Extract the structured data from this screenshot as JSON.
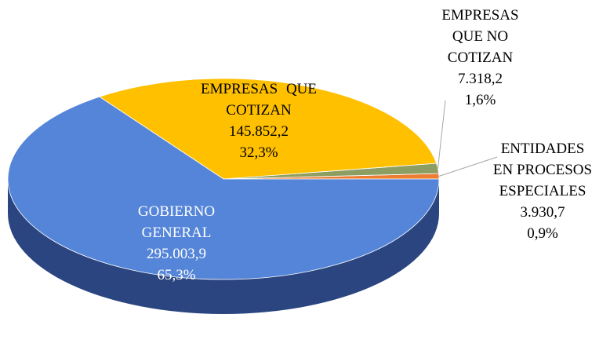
{
  "chart_data": {
    "type": "pie",
    "categories": [
      "GOBIERNO GENERAL",
      "EMPRESAS QUE COTIZAN",
      "EMPRESAS QUE NO COTIZAN",
      "ENTIDADES EN PROCESOS ESPECIALES"
    ],
    "values": [
      295003.9,
      145852.2,
      7318.2,
      3930.7
    ],
    "value_labels": [
      "295.003,9",
      "145.852,2",
      "7.318,2",
      "3.930,7"
    ],
    "percents": [
      65.3,
      32.3,
      1.6,
      0.9
    ],
    "percent_labels": [
      "65,3%",
      "32,3%",
      "1,6%",
      "0,9%"
    ],
    "colors": [
      "#5585d8",
      "#ffc000",
      "#8c9e62",
      "#ed7d31"
    ],
    "side_colors": [
      "#2b4580",
      "#b08400",
      "#5e6b40",
      "#a8561f"
    ]
  }
}
